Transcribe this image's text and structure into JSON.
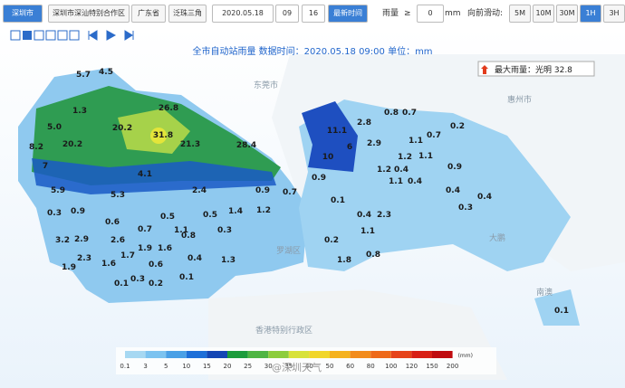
{
  "toolbar": {
    "city": "深圳市",
    "zone": "深圳市深汕特别合作区",
    "province": "广东省",
    "region": "泛珠三角",
    "date": "2020.05.18",
    "hour": "09",
    "minute": "16",
    "latest": "最新时间",
    "rain_label": "雨量",
    "op": "≥",
    "threshold": "0",
    "unit": "mm",
    "slide_label": "向前滑动:",
    "intervals": [
      "5M",
      "10M",
      "30M",
      "1H",
      "3H"
    ]
  },
  "map": {
    "title": "全市自动站雨量  数据时间：2020.05.18 09:00  单位：mm",
    "max_rain": "最大雨量：光明 32.8",
    "places": [
      "东莞市",
      "惠州市",
      "罗湖区",
      "大鹏",
      "南澳",
      "香港特别行政区"
    ],
    "station_values": [
      "5.7",
      "4.5",
      "1.3",
      "5.0",
      "26.8",
      "20.2",
      "31.8",
      "20.2",
      "8.2",
      "21.3",
      "28.4",
      "7",
      "4.1",
      "5.9",
      "5.3",
      "2.4",
      "0.7",
      "0.9",
      "0.3",
      "0.9",
      "0.5",
      "0.5",
      "1.4",
      "1.2",
      "0.6",
      "0.7",
      "1.1",
      "3.2",
      "2.9",
      "2.6",
      "1.9",
      "1.6",
      "0.8",
      "0.3",
      "0.4",
      "1.3",
      "2.3",
      "1.6",
      "1.7",
      "0.6",
      "1.9",
      "0.1",
      "0.3",
      "0.2",
      "0.1",
      "0.9",
      "0.1",
      "0.4",
      "2.3",
      "0.2",
      "1.1",
      "0.8",
      "1.8",
      "2.8",
      "0.8",
      "0.7",
      "11.1",
      "6",
      "10",
      "2.9",
      "1.1",
      "0.7",
      "0.2",
      "1.2",
      "1.1",
      "0.4",
      "1.2",
      "1.1",
      "0.9",
      "0.4",
      "0.4",
      "0.3",
      "0.4",
      "0.1"
    ]
  },
  "legend": {
    "unit": "(mm)",
    "ticks": [
      "0.1",
      "3",
      "5",
      "10",
      "15",
      "20",
      "25",
      "30",
      "35",
      "40",
      "50",
      "60",
      "80",
      "100",
      "120",
      "150",
      "200"
    ],
    "colors": [
      "#a6d8f2",
      "#7cc3f0",
      "#4aa0e6",
      "#1e6fd8",
      "#1446b4",
      "#1d9c3c",
      "#4fb543",
      "#8ccd3c",
      "#d8e23a",
      "#f1d62a",
      "#f5b21e",
      "#f28c1c",
      "#ee6a1a",
      "#e6441a",
      "#d82016",
      "#c00c10"
    ]
  },
  "watermark": "@深圳天气"
}
